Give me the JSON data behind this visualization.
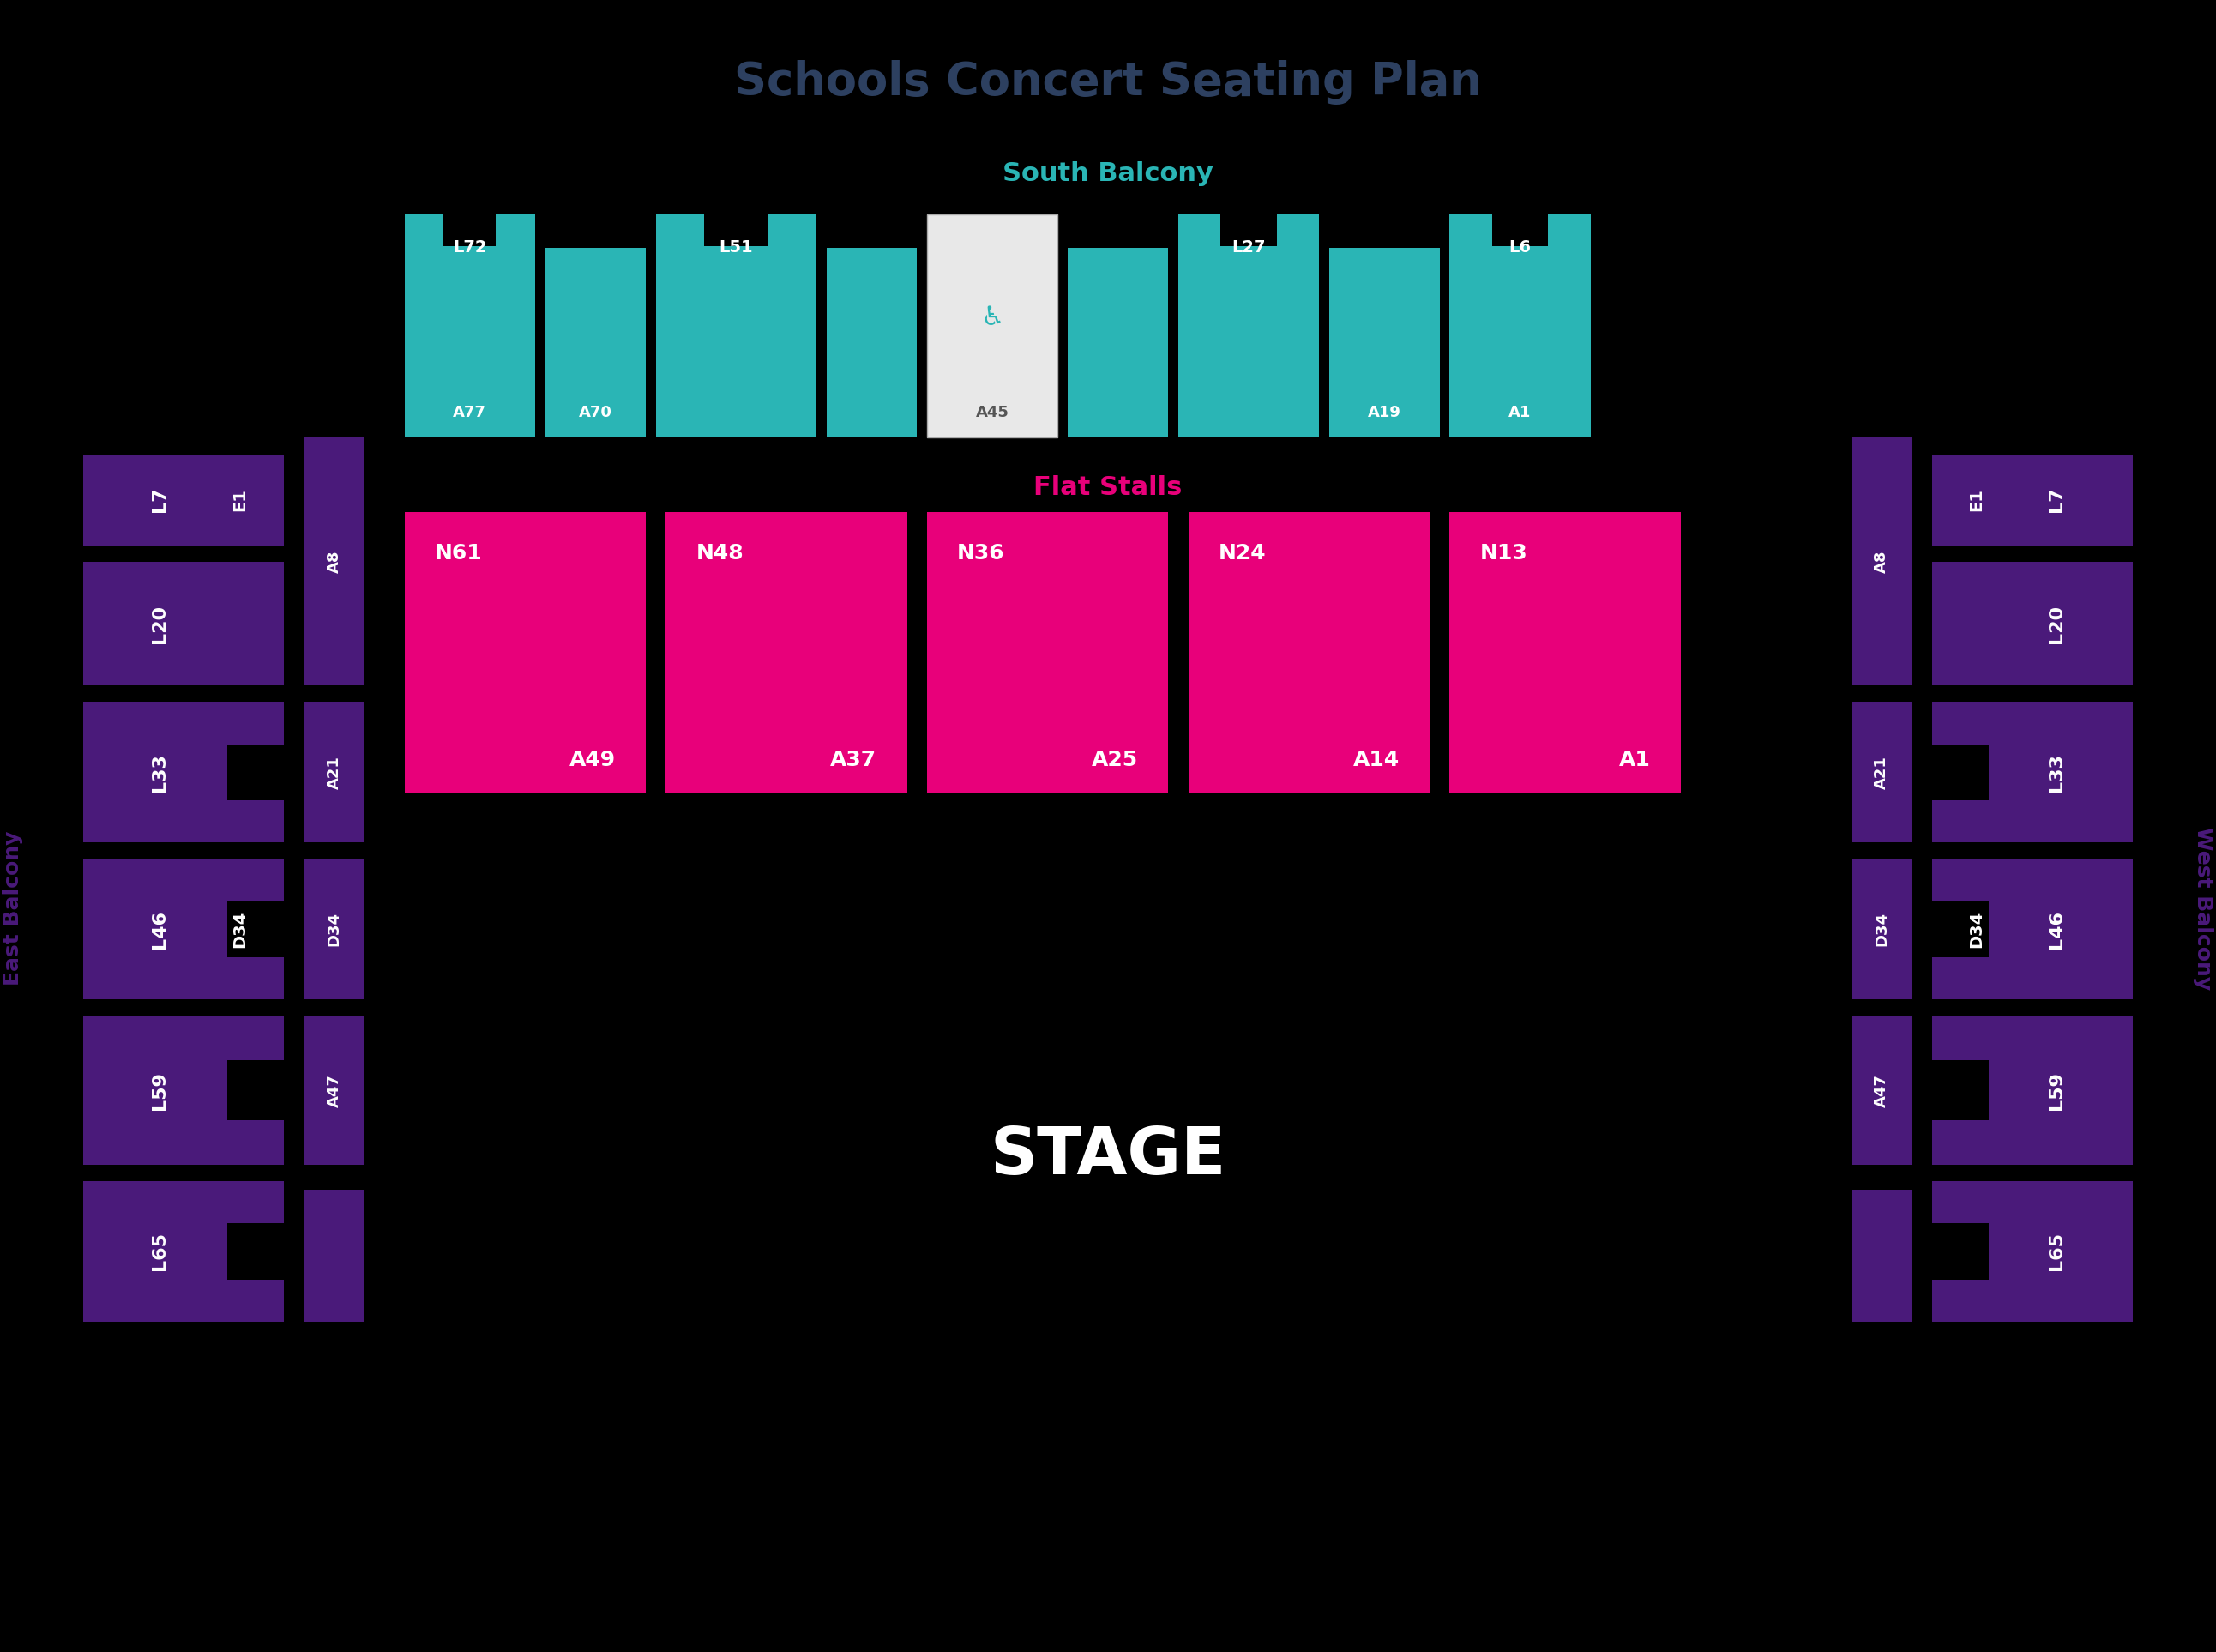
{
  "title": "Schools Concert Seating Plan",
  "title_color": "#2d4060",
  "bg_color": "#000000",
  "teal": "#2ab5b5",
  "purple": "#4a1a7a",
  "magenta": "#e8007a",
  "white": "#ffffff",
  "south_balcony_label": "South Balcony",
  "flat_stalls_label": "Flat Stalls",
  "east_balcony_label": "East Balcony",
  "west_balcony_label": "West Balcony",
  "stage_label": "STAGE",
  "wheelchair_symbol": "♿"
}
